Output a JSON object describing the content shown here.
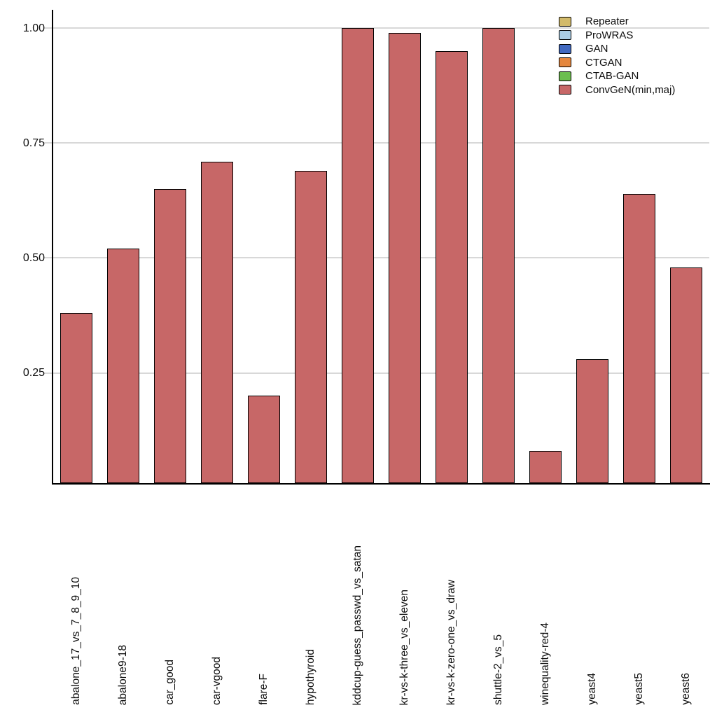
{
  "figure": {
    "background": "#ffffff",
    "grid_color": "#d8d8d8",
    "axis_color": "#000000"
  },
  "chart_data": {
    "type": "bar",
    "title": "",
    "xlabel": "",
    "ylabel": "",
    "categories": [
      "abalone_17_vs_7_8_9_10",
      "abalone9-18",
      "car_good",
      "car-vgood",
      "flare-F",
      "hypothyroid",
      "kddcup-guess_passwd_vs_satan",
      "kr-vs-k-three_vs_eleven",
      "kr-vs-k-zero-one_vs_draw",
      "shuttle-2_vs_5",
      "winequality-red-4",
      "yeast4",
      "yeast5",
      "yeast6"
    ],
    "series": [
      {
        "name": "ConvGeN(min,maj)",
        "color": "#c76767",
        "edge_color": "#000000",
        "values": [
          0.38,
          0.52,
          0.65,
          0.71,
          0.2,
          0.69,
          1.0,
          0.99,
          0.95,
          1.0,
          0.08,
          0.28,
          0.64,
          0.48
        ]
      }
    ],
    "legend": {
      "position": "top-right",
      "entries": [
        {
          "label": "Repeater",
          "color": "#d2ba6a"
        },
        {
          "label": "ProWRAS",
          "color": "#a9cce4"
        },
        {
          "label": "GAN",
          "color": "#4169c0"
        },
        {
          "label": "CTGAN",
          "color": "#e5873e"
        },
        {
          "label": "CTAB-GAN",
          "color": "#6cbe4f"
        },
        {
          "label": "ConvGeN(min,maj)",
          "color": "#c76767"
        }
      ]
    },
    "yticks": [
      {
        "value": 0.25,
        "label": "0.25"
      },
      {
        "value": 0.5,
        "label": "0.50"
      },
      {
        "value": 0.75,
        "label": "0.75"
      },
      {
        "value": 1.0,
        "label": "1.00"
      }
    ],
    "ylim": [
      0.01,
      1.04
    ],
    "grid": "horizontal"
  }
}
